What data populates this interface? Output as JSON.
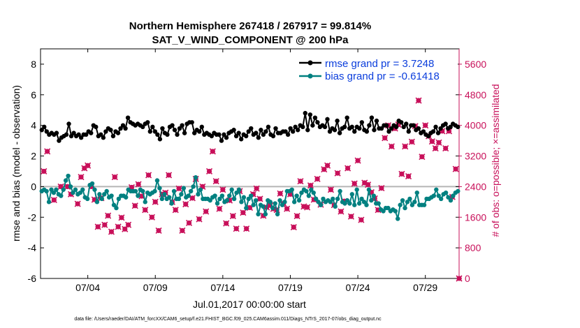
{
  "chart_data": {
    "type": "line",
    "title": "Northern Hemisphere 267418 / 267917 = 99.814%",
    "subtitle": "SAT_V_WIND_COMPONENT @ 200 hPa",
    "xlabel": "Jul.01,2017 00:00:00 start",
    "ylabel_left": "rmse and bias (model - observation)",
    "ylabel_right": "# of obs: o=possible; ×=assimilated",
    "footer": "data file: /Users/raeder/DAI/ATM_forcXX/CAM6_setup/f.e21.FHIST_BGC.f09_025.CAM6assim.011/Diags_NTrS_2017-07/obs_diag_output.nc",
    "x_ticks": [
      "07/04",
      "07/09",
      "07/14",
      "07/19",
      "07/24",
      "07/29"
    ],
    "x_tick_days": [
      3.5,
      8.5,
      13.5,
      18.5,
      23.5,
      28.5
    ],
    "xlim": [
      0,
      31
    ],
    "ylim_left": [
      -6,
      9
    ],
    "y_ticks_left": [
      -6,
      -4,
      -2,
      0,
      2,
      4,
      6,
      8
    ],
    "ylim_right": [
      0,
      6000
    ],
    "y_ticks_right": [
      0,
      800,
      1600,
      2400,
      3200,
      4000,
      4800,
      5600
    ],
    "legend": [
      {
        "name": "rmse grand pr = 3.7248",
        "color": "#000000"
      },
      {
        "name": "bias grand pr = -0.61418",
        "color": "#008080"
      }
    ],
    "legend_text_color": "#0a3ddc",
    "right_axis_color": "#c8105a",
    "series": [
      {
        "name": "rmse",
        "color": "#000000",
        "values": [
          3.7,
          3.9,
          3.6,
          3.4,
          3.5,
          3.4,
          3.5,
          3.0,
          3.2,
          3.3,
          3.4,
          4.1,
          3.3,
          3.5,
          3.3,
          3.4,
          3.2,
          3.4,
          3.4,
          3.6,
          3.5,
          4.0,
          3.9,
          3.3,
          3.4,
          3.2,
          3.6,
          3.8,
          3.7,
          3.3,
          3.6,
          3.5,
          3.8,
          4.0,
          3.8,
          4.5,
          4.2,
          4.1,
          4.0,
          4.1,
          4.0,
          3.9,
          4.1,
          4.2,
          3.6,
          3.9,
          3.6,
          3.4,
          3.1,
          3.8,
          3.5,
          3.4,
          3.9,
          4.0,
          3.7,
          3.4,
          3.8,
          4.0,
          3.5,
          4.1,
          4.2,
          4.2,
          3.5,
          3.7,
          3.6,
          3.9,
          3.4,
          3.5,
          3.4,
          3.3,
          3.5,
          3.4,
          3.4,
          3.0,
          3.4,
          3.2,
          3.5,
          3.6,
          3.7,
          3.3,
          3.5,
          3.1,
          3.4,
          3.3,
          3.6,
          3.8,
          3.4,
          3.5,
          3.2,
          3.7,
          3.4,
          3.6,
          3.9,
          3.4,
          3.3,
          3.8,
          3.5,
          3.5,
          3.6,
          3.6,
          3.4,
          3.8,
          3.6,
          3.9,
          3.7,
          4.0,
          3.9,
          4.8,
          3.7,
          4.7,
          4.0,
          4.5,
          4.2,
          3.9,
          4.0,
          3.9,
          4.4,
          3.6,
          3.8,
          3.7,
          4.3,
          3.5,
          3.8,
          3.9,
          4.5,
          3.8,
          3.9,
          3.6,
          3.9,
          3.8,
          4.2,
          3.7,
          3.6,
          4.0,
          4.5,
          3.7,
          4.3,
          3.8,
          3.8,
          4.0,
          4.0,
          3.6,
          3.8,
          4.0,
          3.9,
          4.3,
          4.2,
          3.9,
          4.1,
          3.6,
          4.0,
          4.0,
          3.7,
          3.8,
          3.5,
          3.6,
          3.4,
          3.3,
          3.5,
          3.6,
          3.9,
          3.5,
          3.8,
          4.0,
          4.1,
          3.8,
          3.9,
          4.1,
          4.0,
          3.9
        ]
      },
      {
        "name": "bias",
        "color": "#008080",
        "values": [
          -0.3,
          -0.2,
          -0.3,
          -1.0,
          -0.2,
          -0.4,
          -0.2,
          -0.5,
          -0.6,
          -0.2,
          0.4,
          0.7,
          0.0,
          -0.4,
          -0.2,
          -0.5,
          -0.4,
          -0.2,
          -0.7,
          -0.8,
          0.1,
          0.2,
          -0.2,
          -1.0,
          -0.5,
          -0.8,
          -0.5,
          -0.3,
          -0.7,
          -0.6,
          -1.2,
          -1.4,
          -0.8,
          -0.6,
          -0.6,
          -0.7,
          -0.2,
          -0.3,
          -0.3,
          -0.3,
          -0.6,
          -0.2,
          -0.3,
          -1.0,
          -0.4,
          -0.5,
          -0.4,
          -0.3,
          0.4,
          -0.1,
          -0.8,
          -0.5,
          -0.8,
          -0.7,
          -1.1,
          -0.3,
          -0.8,
          -0.8,
          -0.5,
          -0.1,
          -0.7,
          -0.6,
          -0.3,
          0.0,
          0.6,
          -0.5,
          -0.2,
          -0.8,
          -0.8,
          -0.8,
          -0.9,
          -0.7,
          -0.6,
          -1.1,
          -0.8,
          -0.6,
          -1.0,
          -0.9,
          -0.6,
          -0.2,
          -0.8,
          -0.4,
          -0.2,
          -1.0,
          -0.7,
          -1.4,
          -0.8,
          -0.6,
          -1.2,
          -0.9,
          -1.8,
          -1.2,
          -1.3,
          -1.8,
          -0.9,
          -1.0,
          -1.4,
          -1.1,
          -1.8,
          -0.9,
          -1.2,
          -1.0,
          -0.3,
          -0.3,
          -0.2,
          -1.0,
          -0.6,
          -0.9,
          -0.4,
          -0.2,
          -0.3,
          -0.6,
          -0.2,
          -0.4,
          -0.8,
          -1.0,
          -1.2,
          -0.8,
          -1.0,
          -0.9,
          -1.0,
          -0.8,
          -1.3,
          -0.8,
          -0.3,
          -1.0,
          -1.1,
          -0.9,
          -1.1,
          -0.5,
          -1.2,
          -0.2,
          -1.1,
          -0.8,
          -1.0,
          -1.2,
          -0.2,
          -0.9,
          -0.6,
          -1.1,
          -1.1,
          -1.5,
          -1.6,
          -1.4,
          -1.4,
          -1.6,
          -1.5,
          -1.6,
          -2.1,
          -1.2,
          -0.9,
          -1.4,
          -1.0,
          -0.8,
          -1.2,
          -1.0,
          -0.4,
          -1.2,
          -1.2,
          -1.2,
          -0.8,
          -0.8,
          -0.7,
          -0.6,
          -0.2,
          -0.6,
          -0.8,
          -0.5,
          -0.4,
          -0.7,
          -0.9,
          -0.6,
          -0.4,
          -0.3
        ]
      }
    ],
    "obs_assimilated": {
      "name": "assimilated",
      "color": "#c8105a",
      "x": [
        0.25,
        0.5,
        1.0,
        1.5,
        2.0,
        2.25,
        2.75,
        3.0,
        3.25,
        3.5,
        3.75,
        4.0,
        4.25,
        4.5,
        4.75,
        5.0,
        5.25,
        5.5,
        5.75,
        6.0,
        6.25,
        6.5,
        6.75,
        7.0,
        7.25,
        7.5,
        7.75,
        8.0,
        8.25,
        8.5,
        8.75,
        9.0,
        9.25,
        9.5,
        9.75,
        10.0,
        10.25,
        10.5,
        10.75,
        11.0,
        11.25,
        11.5,
        11.75,
        12.0,
        12.25,
        12.5,
        12.75,
        13.0,
        13.25,
        13.5,
        13.75,
        14.0,
        14.25,
        14.5,
        14.75,
        15.0,
        15.25,
        15.5,
        15.75,
        16.0,
        16.25,
        16.5,
        16.75,
        17.0,
        17.25,
        17.5,
        17.75,
        18.0,
        18.25,
        18.5,
        18.75,
        19.0,
        19.25,
        19.5,
        19.75,
        20.0,
        20.25,
        20.5,
        20.75,
        21.0,
        21.25,
        21.5,
        21.75,
        22.0,
        22.25,
        22.5,
        22.75,
        23.0,
        23.25,
        23.5,
        23.75,
        24.0,
        24.25,
        24.5,
        24.75,
        25.0,
        25.25,
        25.5,
        25.75,
        26.0,
        26.25,
        26.5,
        26.75,
        27.0,
        27.25,
        27.5,
        27.75,
        28.0,
        28.25,
        28.5,
        28.75,
        29.0,
        29.25,
        29.5,
        29.75,
        30.0,
        30.25,
        30.5,
        30.75,
        31.0
      ],
      "values": [
        2800,
        3320,
        2050,
        2400,
        2400,
        2200,
        1950,
        2650,
        2880,
        2950,
        2400,
        2060,
        1350,
        2100,
        1400,
        1640,
        1220,
        2650,
        1350,
        1590,
        1290,
        1400,
        2380,
        1900,
        2460,
        2150,
        1790,
        2700,
        1600,
        2000,
        1250,
        2200,
        2240,
        2700,
        2000,
        1790,
        2350,
        1250,
        1940,
        1450,
        2100,
        2600,
        1550,
        2400,
        1750,
        2800,
        3320,
        2540,
        1820,
        2320,
        1440,
        2040,
        1630,
        1300,
        2280,
        1720,
        1300,
        1850,
        2200,
        2350,
        2080,
        1640,
        1860,
        1910,
        1820,
        1790,
        2220,
        1960,
        1820,
        2200,
        1340,
        1630,
        2540,
        1880,
        1860,
        2430,
        2060,
        2600,
        1930,
        2850,
        2950,
        2320,
        1920,
        2750,
        1750,
        2020,
        2880,
        1620,
        2480,
        3080,
        1530,
        2500,
        2450,
        2250,
        2090,
        1790,
        2360,
        3670,
        4000,
        3450,
        3920,
        4020,
        2730,
        3450,
        2670,
        3570,
        3980,
        4650,
        3180,
        4000,
        3720,
        3580,
        3400,
        3550,
        3850,
        3400,
        3850,
        2130,
        2860,
        0
      ]
    }
  }
}
